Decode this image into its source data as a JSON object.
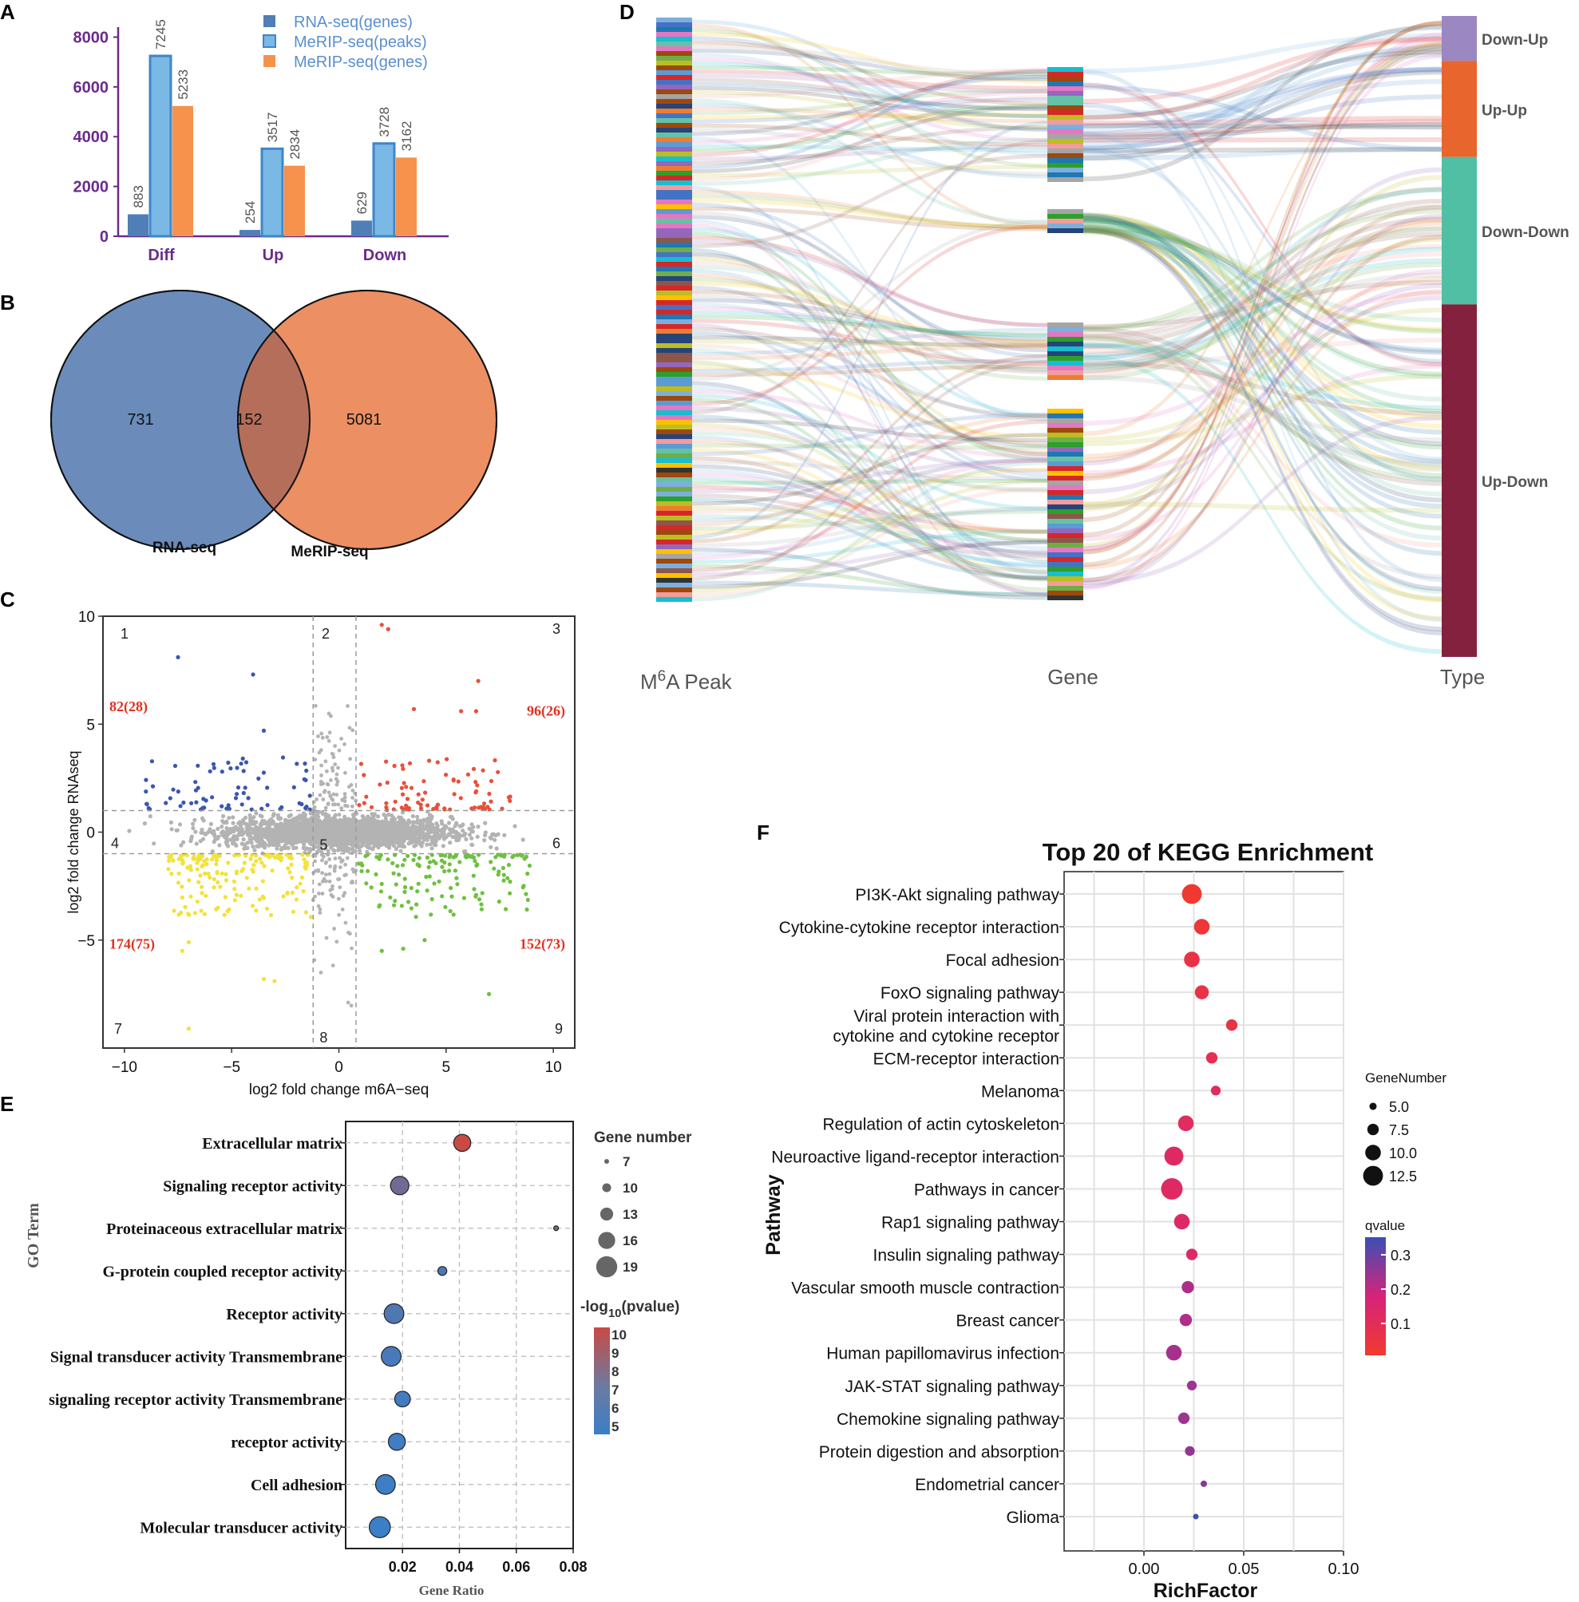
{
  "panels": {
    "A": "A",
    "B": "B",
    "C": "C",
    "D": "D",
    "E": "E",
    "F": "F"
  },
  "chart_data": [
    {
      "panel": "A",
      "type": "bar",
      "categories": [
        "Diff",
        "Up",
        "Down"
      ],
      "series": [
        {
          "name": "RNA-seq(genes)",
          "color": "#4f7fb6",
          "values": [
            883,
            254,
            629
          ]
        },
        {
          "name": "MeRIP-seq(peaks)",
          "color": "#7ab8e5",
          "values": [
            7245,
            3517,
            3728
          ]
        },
        {
          "name": "MeRIP-seq(genes)",
          "color": "#f6924c",
          "values": [
            5233,
            2834,
            3162
          ]
        }
      ],
      "yticks": [
        "0",
        "2000",
        "4000",
        "6000",
        "8000"
      ],
      "ylim": [
        0,
        8400
      ],
      "axis_color": "#6a2b8c"
    },
    {
      "panel": "B",
      "type": "venn",
      "sets": [
        {
          "name": "RNA-seq",
          "only": "731",
          "color": "#6b8cbb"
        },
        {
          "name": "MeRIP-seq",
          "only": "5081",
          "color": "#ec8f63"
        }
      ],
      "overlap": "152"
    },
    {
      "panel": "C",
      "type": "scatter",
      "xlabel": "log2 fold change m6A−seq",
      "ylabel": "log2 fold change RNAseq",
      "xticks": [
        "−10",
        "−5",
        "0",
        "5",
        "10"
      ],
      "yticks": [
        "10",
        "5",
        "0",
        "−5"
      ],
      "xlim": [
        -11,
        11
      ],
      "ylim": [
        -10,
        10
      ],
      "thresholds": {
        "x": [
          -1.2,
          0.8
        ],
        "y": [
          1,
          -1
        ]
      },
      "quadrant_numbers": [
        "1",
        "2",
        "3",
        "4",
        "5",
        "6",
        "7",
        "8",
        "9"
      ],
      "quadrant_counts": {
        "upper_left": "82(28)",
        "upper_right": "96(26)",
        "lower_left": "174(75)",
        "lower_right": "152(73)"
      },
      "colors": {
        "upper_left": "#3a56b0",
        "upper_right": "#e8503a",
        "lower_left": "#f2e23a",
        "lower_right": "#6fc040",
        "other": "#b3b3b3",
        "count_text": "#e03020"
      }
    },
    {
      "panel": "D",
      "type": "sankey",
      "axis_labels": {
        "peak_prefix": "M",
        "peak_sup": "6",
        "peak_suffix": "A Peak",
        "gene": "Gene",
        "type": "Type"
      },
      "types": [
        {
          "name": "Down-Up",
          "color": "#9b87c2",
          "fraction": 0.07
        },
        {
          "name": "Up-Up",
          "color": "#e8652e",
          "fraction": 0.15
        },
        {
          "name": "Down-Down",
          "color": "#51bfa3",
          "fraction": 0.23
        },
        {
          "name": "Up-Down",
          "color": "#84213e",
          "fraction": 0.55
        }
      ]
    },
    {
      "panel": "E",
      "type": "bubble",
      "ylabel": "GO Term",
      "xlabel": "Gene Ratio",
      "xticks": [
        "0.02",
        "0.04",
        "0.06",
        "0.08"
      ],
      "xlim": [
        0.0,
        0.08
      ],
      "size_legend_title": "Gene number",
      "size_legend": [
        "7",
        "10",
        "13",
        "16",
        "19"
      ],
      "color_legend_title_pre": "-log",
      "color_legend_title_sub": "10",
      "color_legend_title_post": "(pvalue)",
      "color_legend_ticks": [
        "10",
        "9",
        "8",
        "7",
        "6",
        "5"
      ],
      "terms": [
        {
          "term": "Extracellular matrix",
          "ratio": 0.041,
          "count": 16,
          "nlogp": 10
        },
        {
          "term": "Signaling receptor activity",
          "ratio": 0.019,
          "count": 17,
          "nlogp": 7
        },
        {
          "term": "Proteinaceous extracellular matrix",
          "ratio": 0.074,
          "count": 7,
          "nlogp": 7.5
        },
        {
          "term": "G-protein coupled receptor activity",
          "ratio": 0.034,
          "count": 10,
          "nlogp": 5.6
        },
        {
          "term": "Receptor activity",
          "ratio": 0.017,
          "count": 18,
          "nlogp": 5.8
        },
        {
          "term": "Signal transducer activity Transmembrane",
          "ratio": 0.016,
          "count": 18,
          "nlogp": 5.5
        },
        {
          "term": "signaling receptor activity Transmembrane",
          "ratio": 0.02,
          "count": 15,
          "nlogp": 5.3
        },
        {
          "term": "receptor activity",
          "ratio": 0.018,
          "count": 16,
          "nlogp": 5.2
        },
        {
          "term": "Cell adhesion",
          "ratio": 0.014,
          "count": 18,
          "nlogp": 5.1
        },
        {
          "term": "Molecular transducer activity",
          "ratio": 0.012,
          "count": 19,
          "nlogp": 5.0
        }
      ]
    },
    {
      "panel": "F",
      "type": "bubble",
      "title": "Top 20 of KEGG Enrichment",
      "xlabel": "RichFactor",
      "ylabel": "Pathway",
      "xticks": [
        "0.00",
        "0.05",
        "0.10"
      ],
      "xlim": [
        -0.04,
        0.1
      ],
      "size_legend_title": "GeneNumber",
      "size_legend": [
        "5.0",
        "7.5",
        "10.0",
        "12.5"
      ],
      "color_legend_title": "qvalue",
      "color_legend_ticks": [
        "0.3",
        "0.2",
        "0.1"
      ],
      "qlim": [
        0.0,
        0.35
      ],
      "pathways": [
        {
          "name": "PI3K-Akt signaling pathway",
          "rf": 0.024,
          "n": 12.5,
          "q": 0.005
        },
        {
          "name": "Cytokine-cytokine receptor interaction",
          "rf": 0.029,
          "n": 10.0,
          "q": 0.02
        },
        {
          "name": "Focal adhesion",
          "rf": 0.024,
          "n": 10.0,
          "q": 0.05
        },
        {
          "name": "FoxO signaling pathway",
          "rf": 0.029,
          "n": 9.0,
          "q": 0.05
        },
        {
          "name": "Viral protein interaction with|cytokine and cytokine receptor",
          "rf": 0.044,
          "n": 7.5,
          "q": 0.05
        },
        {
          "name": "ECM-receptor interaction",
          "rf": 0.034,
          "n": 7.5,
          "q": 0.07
        },
        {
          "name": "Melanoma",
          "rf": 0.036,
          "n": 6.5,
          "q": 0.1
        },
        {
          "name": "Regulation of actin cytoskeleton",
          "rf": 0.021,
          "n": 10.0,
          "q": 0.1
        },
        {
          "name": "Neuroactive ligand-receptor interaction",
          "rf": 0.015,
          "n": 12.0,
          "q": 0.11
        },
        {
          "name": "Pathways in cancer",
          "rf": 0.014,
          "n": 13.5,
          "q": 0.11
        },
        {
          "name": "Rap1 signaling pathway",
          "rf": 0.019,
          "n": 10.0,
          "q": 0.12
        },
        {
          "name": "Insulin signaling pathway",
          "rf": 0.024,
          "n": 7.5,
          "q": 0.12
        },
        {
          "name": "Vascular smooth muscle contraction",
          "rf": 0.022,
          "n": 8.0,
          "q": 0.2
        },
        {
          "name": "Breast cancer",
          "rf": 0.021,
          "n": 8.0,
          "q": 0.2
        },
        {
          "name": "Human papillomavirus infection",
          "rf": 0.015,
          "n": 10.0,
          "q": 0.21
        },
        {
          "name": "JAK-STAT signaling pathway",
          "rf": 0.024,
          "n": 6.5,
          "q": 0.22
        },
        {
          "name": "Chemokine signaling pathway",
          "rf": 0.02,
          "n": 7.5,
          "q": 0.22
        },
        {
          "name": "Protein digestion and absorption",
          "rf": 0.023,
          "n": 6.5,
          "q": 0.23
        },
        {
          "name": "Endometrial cancer",
          "rf": 0.03,
          "n": 4.5,
          "q": 0.25
        },
        {
          "name": "Glioma",
          "rf": 0.026,
          "n": 4.0,
          "q": 0.32
        }
      ]
    }
  ]
}
